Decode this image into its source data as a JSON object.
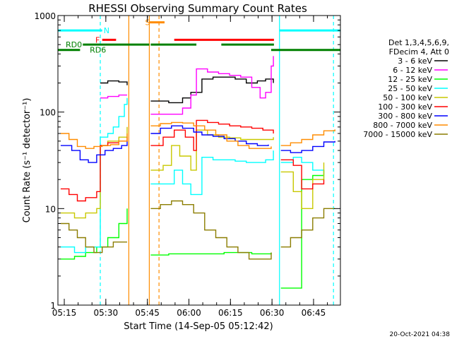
{
  "chart_data": {
    "type": "line",
    "title": "RHESSI Observing Summary Count Rates",
    "xlabel": "Start Time (14-Sep-05 05:12:42)",
    "ylabel": "Count Rate (s⁻¹ detector⁻¹)",
    "yscale": "log",
    "ylim": [
      1,
      1000
    ],
    "xlim_minutes": [
      0,
      102
    ],
    "y_ticks": [
      {
        "value": 1,
        "label": "1"
      },
      {
        "value": 10,
        "label": "10"
      },
      {
        "value": 100,
        "label": "100"
      },
      {
        "value": 1000,
        "label": "1000"
      }
    ],
    "x_ticks": [
      {
        "minute": 2.3,
        "label": "05:15"
      },
      {
        "minute": 17.3,
        "label": "05:30"
      },
      {
        "minute": 32.3,
        "label": "05:45"
      },
      {
        "minute": 47.3,
        "label": "06:00"
      },
      {
        "minute": 62.3,
        "label": "06:15"
      },
      {
        "minute": 77.3,
        "label": "06:30"
      },
      {
        "minute": 92.3,
        "label": "06:45"
      }
    ],
    "legend_header": [
      "Det 1,3,4,5,6,9,",
      "FDecim 4, Att 0"
    ],
    "timestamp": "20-Oct-2021 04:38",
    "gaps": [
      [
        25.5,
        33.5
      ],
      [
        78.2,
        80.5
      ]
    ],
    "series": [
      {
        "name": "3 - 6 keV",
        "color": "#000000",
        "points": [
          [
            15.3,
            200
          ],
          [
            18,
            210
          ],
          [
            22,
            205
          ],
          [
            25,
            190
          ],
          [
            33.5,
            130
          ],
          [
            40,
            125
          ],
          [
            45,
            140
          ],
          [
            48,
            160
          ],
          [
            52,
            220
          ],
          [
            56,
            230
          ],
          [
            60,
            230
          ],
          [
            64,
            220
          ],
          [
            68,
            200
          ],
          [
            72,
            210
          ],
          [
            75,
            220
          ],
          [
            77.8,
            200
          ]
        ]
      },
      {
        "name": "6 - 12 keV",
        "color": "#ff00ff",
        "points": [
          [
            15.3,
            140
          ],
          [
            18,
            145
          ],
          [
            22,
            150
          ],
          [
            25,
            150
          ],
          [
            33.5,
            95
          ],
          [
            40,
            95
          ],
          [
            45,
            110
          ],
          [
            48,
            150
          ],
          [
            50,
            280
          ],
          [
            54,
            260
          ],
          [
            58,
            250
          ],
          [
            62,
            240
          ],
          [
            66,
            230
          ],
          [
            70,
            180
          ],
          [
            73,
            140
          ],
          [
            75,
            160
          ],
          [
            77,
            300
          ],
          [
            77.8,
            380
          ]
        ]
      },
      {
        "name": "12 - 25 keV",
        "color": "#00ff00",
        "points": [
          [
            1,
            3
          ],
          [
            6,
            3.2
          ],
          [
            10,
            3.5
          ],
          [
            14,
            4
          ],
          [
            18,
            5
          ],
          [
            22,
            7
          ],
          [
            25,
            10
          ],
          [
            33.5,
            3.3
          ],
          [
            40,
            3.4
          ],
          [
            50,
            3.4
          ],
          [
            60,
            3.5
          ],
          [
            70,
            3.4
          ],
          [
            77,
            3.5
          ],
          [
            80.5,
            1.5
          ],
          [
            85,
            1.5
          ],
          [
            88,
            20
          ],
          [
            92,
            22
          ],
          [
            96,
            25
          ]
        ]
      },
      {
        "name": "25 - 50 keV",
        "color": "#00ffff",
        "points": [
          [
            1,
            4
          ],
          [
            6,
            3.5
          ],
          [
            10,
            4
          ],
          [
            14,
            4
          ],
          [
            15.3,
            55
          ],
          [
            18,
            60
          ],
          [
            20,
            70
          ],
          [
            22,
            90
          ],
          [
            24,
            120
          ],
          [
            25,
            140
          ],
          [
            33.5,
            18
          ],
          [
            38,
            18
          ],
          [
            42,
            25
          ],
          [
            45,
            18
          ],
          [
            48,
            14
          ],
          [
            52,
            34
          ],
          [
            56,
            32
          ],
          [
            60,
            32
          ],
          [
            64,
            31
          ],
          [
            68,
            30
          ],
          [
            72,
            30
          ],
          [
            75,
            32
          ],
          [
            77.8,
            40
          ],
          [
            80.5,
            30
          ],
          [
            85,
            34
          ],
          [
            88,
            30
          ],
          [
            92,
            25
          ],
          [
            96,
            20
          ]
        ]
      },
      {
        "name": "50 - 100 keV",
        "color": "#c8c800",
        "points": [
          [
            1,
            9
          ],
          [
            6,
            8
          ],
          [
            10,
            9
          ],
          [
            14,
            10
          ],
          [
            15.3,
            45
          ],
          [
            18,
            50
          ],
          [
            22,
            55
          ],
          [
            25,
            70
          ],
          [
            33.5,
            25
          ],
          [
            38,
            28
          ],
          [
            41,
            45
          ],
          [
            44,
            35
          ],
          [
            48,
            25
          ],
          [
            50,
            65
          ],
          [
            54,
            58
          ],
          [
            58,
            55
          ],
          [
            62,
            54
          ],
          [
            66,
            52
          ],
          [
            70,
            52
          ],
          [
            74,
            52
          ],
          [
            77.8,
            55
          ],
          [
            80.5,
            24
          ],
          [
            85,
            15
          ],
          [
            88,
            10
          ],
          [
            92,
            20
          ],
          [
            96,
            30
          ]
        ]
      },
      {
        "name": "100 - 300 keV",
        "color": "#ff0000",
        "points": [
          [
            1,
            16
          ],
          [
            4,
            14
          ],
          [
            7,
            12
          ],
          [
            10,
            13
          ],
          [
            14,
            15
          ],
          [
            15.3,
            45
          ],
          [
            18,
            48
          ],
          [
            22,
            50
          ],
          [
            25,
            55
          ],
          [
            33.5,
            45
          ],
          [
            38,
            55
          ],
          [
            42,
            65
          ],
          [
            46,
            55
          ],
          [
            49,
            40
          ],
          [
            50,
            82
          ],
          [
            54,
            78
          ],
          [
            58,
            75
          ],
          [
            62,
            72
          ],
          [
            66,
            70
          ],
          [
            70,
            68
          ],
          [
            74,
            65
          ],
          [
            77.8,
            60
          ],
          [
            80.5,
            32
          ],
          [
            85,
            28
          ],
          [
            88,
            16
          ],
          [
            92,
            18
          ],
          [
            96,
            20
          ]
        ]
      },
      {
        "name": "300 - 800 keV",
        "color": "#0000ff",
        "points": [
          [
            1,
            45
          ],
          [
            5,
            40
          ],
          [
            8,
            32
          ],
          [
            11,
            30
          ],
          [
            14,
            36
          ],
          [
            17,
            40
          ],
          [
            20,
            42
          ],
          [
            23,
            45
          ],
          [
            25,
            50
          ],
          [
            33.5,
            60
          ],
          [
            37,
            68
          ],
          [
            41,
            72
          ],
          [
            45,
            68
          ],
          [
            49,
            62
          ],
          [
            52,
            58
          ],
          [
            56,
            56
          ],
          [
            60,
            53
          ],
          [
            64,
            50
          ],
          [
            68,
            47
          ],
          [
            72,
            45
          ],
          [
            76,
            46
          ],
          [
            80.5,
            40
          ],
          [
            84,
            38
          ],
          [
            88,
            40
          ],
          [
            92,
            44
          ],
          [
            96,
            49
          ],
          [
            100,
            50
          ]
        ]
      },
      {
        "name": "800 - 7000 keV",
        "color": "#ff8c00",
        "points": [
          [
            1,
            60
          ],
          [
            4,
            52
          ],
          [
            7,
            44
          ],
          [
            10,
            42
          ],
          [
            13,
            44
          ],
          [
            16,
            45
          ],
          [
            19,
            46
          ],
          [
            22,
            50
          ],
          [
            25,
            60
          ],
          [
            33.5,
            72
          ],
          [
            37,
            76
          ],
          [
            41,
            78
          ],
          [
            45,
            77
          ],
          [
            49,
            72
          ],
          [
            53,
            65
          ],
          [
            57,
            58
          ],
          [
            61,
            50
          ],
          [
            65,
            45
          ],
          [
            69,
            42
          ],
          [
            73,
            42
          ],
          [
            77,
            44
          ],
          [
            80.5,
            45
          ],
          [
            84,
            48
          ],
          [
            88,
            52
          ],
          [
            92,
            58
          ],
          [
            96,
            64
          ],
          [
            100,
            66
          ]
        ]
      },
      {
        "name": "7000 - 15000 keV",
        "color": "#8b7d00",
        "points": [
          [
            1,
            7
          ],
          [
            4,
            6
          ],
          [
            7,
            5
          ],
          [
            10,
            4
          ],
          [
            13,
            3.5
          ],
          [
            16,
            4
          ],
          [
            20,
            4.5
          ],
          [
            25,
            4.5
          ],
          [
            33.5,
            10
          ],
          [
            37,
            11
          ],
          [
            41,
            12
          ],
          [
            45,
            11
          ],
          [
            49,
            9
          ],
          [
            53,
            6
          ],
          [
            57,
            5
          ],
          [
            61,
            4
          ],
          [
            65,
            3.5
          ],
          [
            69,
            3
          ],
          [
            73,
            3
          ],
          [
            77,
            3.5
          ],
          [
            80.5,
            4
          ],
          [
            84,
            5
          ],
          [
            88,
            6
          ],
          [
            92,
            8
          ],
          [
            96,
            10
          ],
          [
            100,
            10
          ]
        ]
      }
    ],
    "segments": [
      {
        "label": "N",
        "color": "#00ffff",
        "y": 700,
        "spans": [
          [
            0,
            16
          ],
          [
            80,
            102
          ]
        ]
      },
      {
        "label": "S",
        "color": "#ff8c00",
        "y": 850,
        "spans": [
          [
            33,
            38.5
          ]
        ]
      },
      {
        "label": "F",
        "color": "#ff0000",
        "y": 560,
        "spans": [
          [
            16,
            21
          ],
          [
            42,
            78
          ]
        ]
      },
      {
        "label": "RD0",
        "color": "#008000",
        "y": 500,
        "spans": [
          [
            9,
            33
          ],
          [
            33.5,
            50
          ],
          [
            59,
            78
          ]
        ]
      },
      {
        "label": "RD6",
        "color": "#008000",
        "y": 440,
        "spans": [
          [
            0,
            8
          ],
          [
            77,
            102
          ]
        ]
      }
    ],
    "vlines": [
      {
        "minute": 15.3,
        "color": "#00ffff",
        "dash": true
      },
      {
        "minute": 25.6,
        "color": "#ff8c00",
        "dash": false
      },
      {
        "minute": 33.0,
        "color": "#ff8c00",
        "dash": false
      },
      {
        "minute": 36.5,
        "color": "#ff8c00",
        "dash": true
      },
      {
        "minute": 80.0,
        "color": "#00ffff",
        "dash": false
      },
      {
        "minute": 99.5,
        "color": "#00ffff",
        "dash": true
      }
    ]
  }
}
